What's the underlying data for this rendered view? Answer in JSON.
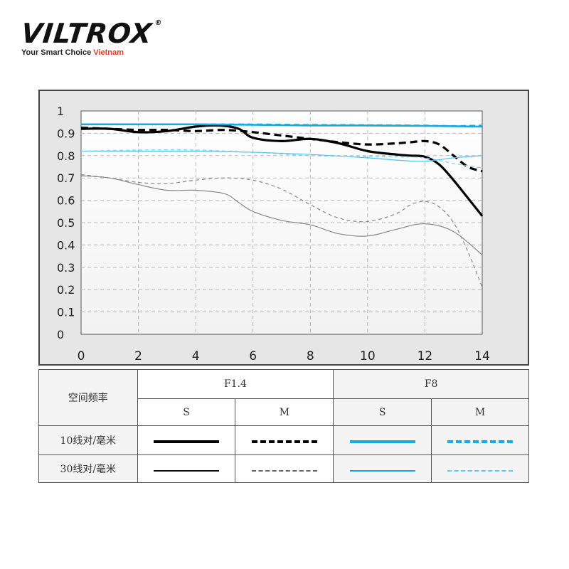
{
  "brand": {
    "logo_text": "VILTROX",
    "registered_mark": "®",
    "tagline_prefix": "Your Smart Choice",
    "tagline_suffix": "Vietnam"
  },
  "chart_data": {
    "type": "line",
    "title": "",
    "xlabel": "",
    "ylabel": "",
    "xlim": [
      0,
      14
    ],
    "ylim": [
      0,
      1
    ],
    "x_ticks": [
      "0",
      "2",
      "4",
      "6",
      "8",
      "10",
      "12",
      "14"
    ],
    "y_ticks": [
      "0",
      "0.1",
      "0.2",
      "0.3",
      "0.4",
      "0.5",
      "0.6",
      "0.7",
      "0.8",
      "0.9",
      "1"
    ],
    "grid": true,
    "series": [
      {
        "aperture": "F1.4",
        "frequency": "10",
        "type": "S",
        "color": "#000000",
        "x": [
          0,
          1,
          2,
          3,
          4,
          4.8,
          5.5,
          6,
          7,
          8,
          9,
          10,
          11,
          11.5,
          12,
          12.5,
          13,
          13.5,
          14
        ],
        "y": [
          0.92,
          0.92,
          0.905,
          0.91,
          0.93,
          0.935,
          0.92,
          0.88,
          0.865,
          0.875,
          0.855,
          0.82,
          0.805,
          0.8,
          0.795,
          0.76,
          0.69,
          0.61,
          0.53
        ]
      },
      {
        "aperture": "F1.4",
        "frequency": "10",
        "type": "M",
        "color": "#000000",
        "x": [
          0,
          1,
          2,
          3,
          4,
          5,
          6,
          7,
          8,
          9,
          10,
          11,
          11.5,
          12,
          12.5,
          13,
          13.5,
          14
        ],
        "y": [
          0.925,
          0.92,
          0.915,
          0.915,
          0.91,
          0.915,
          0.905,
          0.89,
          0.875,
          0.86,
          0.85,
          0.855,
          0.86,
          0.865,
          0.85,
          0.8,
          0.75,
          0.73
        ]
      },
      {
        "aperture": "F1.4",
        "frequency": "30",
        "type": "S",
        "color": "#888888",
        "x": [
          0,
          1,
          2,
          3,
          4,
          5,
          5.5,
          6,
          7,
          8,
          9,
          10,
          11,
          12,
          13,
          14
        ],
        "y": [
          0.71,
          0.7,
          0.67,
          0.645,
          0.645,
          0.63,
          0.59,
          0.55,
          0.51,
          0.49,
          0.45,
          0.44,
          0.47,
          0.495,
          0.46,
          0.355
        ]
      },
      {
        "aperture": "F1.4",
        "frequency": "30",
        "type": "M",
        "color": "#888888",
        "x": [
          0,
          1,
          2,
          3,
          4,
          5,
          6,
          7,
          8,
          9,
          10,
          11,
          11.5,
          12,
          12.5,
          13,
          13.5,
          14
        ],
        "y": [
          0.715,
          0.7,
          0.68,
          0.675,
          0.69,
          0.7,
          0.69,
          0.65,
          0.58,
          0.52,
          0.505,
          0.54,
          0.58,
          0.595,
          0.57,
          0.5,
          0.37,
          0.21
        ]
      },
      {
        "aperture": "F8",
        "frequency": "10",
        "type": "S",
        "color": "#19a8e2",
        "x": [
          0,
          2,
          4,
          6,
          8,
          10,
          12,
          14
        ],
        "y": [
          0.94,
          0.94,
          0.94,
          0.938,
          0.935,
          0.935,
          0.933,
          0.93
        ]
      },
      {
        "aperture": "F8",
        "frequency": "10",
        "type": "M",
        "color": "#19a8e2",
        "x": [
          0,
          2,
          4,
          6,
          8,
          10,
          12,
          13,
          14
        ],
        "y": [
          0.94,
          0.94,
          0.94,
          0.94,
          0.938,
          0.937,
          0.935,
          0.933,
          0.935
        ]
      },
      {
        "aperture": "F8",
        "frequency": "30",
        "type": "S",
        "color": "#4cc0ec",
        "x": [
          0,
          2,
          4,
          6,
          8,
          10,
          11,
          12,
          13,
          14
        ],
        "y": [
          0.82,
          0.82,
          0.82,
          0.815,
          0.805,
          0.79,
          0.78,
          0.775,
          0.79,
          0.8
        ]
      },
      {
        "aperture": "F8",
        "frequency": "30",
        "type": "M",
        "color": "#7fd0f0",
        "x": [
          0,
          2,
          4,
          6,
          8,
          10,
          11,
          12,
          13,
          14
        ],
        "y": [
          0.82,
          0.825,
          0.825,
          0.815,
          0.8,
          0.795,
          0.795,
          0.79,
          0.765,
          0.745
        ]
      }
    ]
  },
  "legend": {
    "header_label": "空间频率",
    "apertures": [
      "F1.4",
      "F8"
    ],
    "types": [
      "S",
      "M",
      "S",
      "M"
    ],
    "rows": [
      {
        "label": "10线对/毫米"
      },
      {
        "label": "30线对/毫米"
      }
    ]
  }
}
